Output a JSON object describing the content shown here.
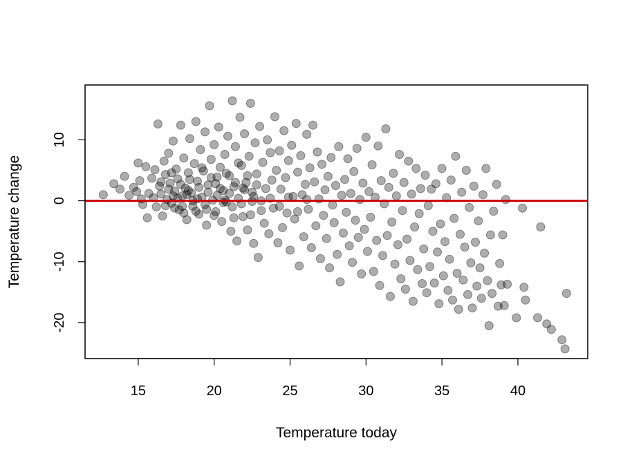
{
  "chart_data": {
    "type": "scatter",
    "title": "",
    "xlabel": "Temperature today",
    "ylabel": "Temperature change",
    "xlim": [
      11.5,
      44.6
    ],
    "ylim": [
      -25.9,
      19.0
    ],
    "xticks": [
      15,
      20,
      25,
      30,
      35,
      40
    ],
    "yticks": [
      -20,
      -10,
      0,
      10
    ],
    "grid": false,
    "legend": "none",
    "point_color": "#000000",
    "point_opacity": 0.32,
    "reference_line": {
      "y": 0,
      "color": "#cc0000"
    },
    "series": [
      {
        "points": [
          [
            12.7,
            1.0
          ],
          [
            13.4,
            2.8
          ],
          [
            13.8,
            1.9
          ],
          [
            14.1,
            4.0
          ],
          [
            14.4,
            0.9
          ],
          [
            14.7,
            2.2
          ],
          [
            14.9,
            1.5
          ],
          [
            15.0,
            6.2
          ],
          [
            15.1,
            3.3
          ],
          [
            15.2,
            0.3
          ],
          [
            15.3,
            -0.6
          ],
          [
            15.5,
            5.6
          ],
          [
            15.6,
            -2.8
          ],
          [
            15.7,
            1.2
          ],
          [
            15.9,
            3.7
          ],
          [
            16.0,
            0.5
          ],
          [
            16.1,
            5.1
          ],
          [
            16.2,
            -1.0
          ],
          [
            16.3,
            12.6
          ],
          [
            16.4,
            2.4
          ],
          [
            16.5,
            1.1
          ],
          [
            16.6,
            -2.5
          ],
          [
            16.7,
            6.5
          ],
          [
            16.8,
            4.3
          ],
          [
            16.9,
            0.2
          ],
          [
            17.0,
            7.8
          ],
          [
            17.1,
            2.9
          ],
          [
            17.2,
            -0.4
          ],
          [
            17.3,
            9.8
          ],
          [
            17.4,
            1.6
          ],
          [
            17.5,
            5.2
          ],
          [
            17.6,
            3.6
          ],
          [
            17.7,
            -1.5
          ],
          [
            17.8,
            12.4
          ],
          [
            17.9,
            0.8
          ],
          [
            18.0,
            7.0
          ],
          [
            18.1,
            2.1
          ],
          [
            18.2,
            -3.1
          ],
          [
            18.3,
            4.6
          ],
          [
            18.4,
            10.2
          ],
          [
            18.5,
            1.3
          ],
          [
            18.6,
            -0.9
          ],
          [
            18.7,
            6.1
          ],
          [
            18.8,
            13.0
          ],
          [
            18.9,
            3.2
          ],
          [
            19.0,
            -2.2
          ],
          [
            19.1,
            8.4
          ],
          [
            19.2,
            0.6
          ],
          [
            19.3,
            4.9
          ],
          [
            19.4,
            11.3
          ],
          [
            19.5,
            -4.0
          ],
          [
            19.6,
            2.6
          ],
          [
            19.7,
            15.6
          ],
          [
            19.8,
            6.8
          ],
          [
            19.9,
            0.1
          ],
          [
            20.0,
            9.2
          ],
          [
            20.1,
            -1.8
          ],
          [
            20.2,
            3.9
          ],
          [
            20.3,
            12.1
          ],
          [
            20.4,
            5.5
          ],
          [
            20.5,
            -3.4
          ],
          [
            20.6,
            1.7
          ],
          [
            20.7,
            7.6
          ],
          [
            20.8,
            -0.2
          ],
          [
            20.9,
            10.6
          ],
          [
            21.0,
            4.1
          ],
          [
            21.1,
            -5.0
          ],
          [
            21.2,
            16.4
          ],
          [
            21.3,
            2.3
          ],
          [
            21.4,
            8.9
          ],
          [
            21.5,
            -6.6
          ],
          [
            21.6,
            0.4
          ],
          [
            21.7,
            13.7
          ],
          [
            21.8,
            5.8
          ],
          [
            21.9,
            -2.6
          ],
          [
            22.0,
            11.0
          ],
          [
            22.1,
            3.0
          ],
          [
            22.2,
            -4.8
          ],
          [
            22.3,
            7.3
          ],
          [
            22.4,
            16.0
          ],
          [
            22.5,
            1.4
          ],
          [
            22.6,
            -7.0
          ],
          [
            22.7,
            9.5
          ],
          [
            22.8,
            4.4
          ],
          [
            22.9,
            -9.3
          ],
          [
            23.0,
            12.2
          ],
          [
            23.1,
            0.0
          ],
          [
            23.2,
            6.3
          ],
          [
            23.3,
            -3.7
          ],
          [
            23.4,
            2.0
          ],
          [
            23.5,
            10.0
          ],
          [
            23.6,
            -5.4
          ],
          [
            23.7,
            7.9
          ],
          [
            23.8,
            3.4
          ],
          [
            23.9,
            -1.2
          ],
          [
            24.0,
            13.8
          ],
          [
            24.1,
            5.0
          ],
          [
            24.2,
            -6.9
          ],
          [
            24.3,
            8.2
          ],
          [
            24.4,
            1.9
          ],
          [
            24.5,
            -4.4
          ],
          [
            24.6,
            11.5
          ],
          [
            24.7,
            3.8
          ],
          [
            24.8,
            -2.0
          ],
          [
            24.9,
            6.6
          ],
          [
            25.0,
            -8.1
          ],
          [
            25.1,
            9.1
          ],
          [
            25.2,
            0.7
          ],
          [
            25.3,
            -3.0
          ],
          [
            25.4,
            12.7
          ],
          [
            25.5,
            4.7
          ],
          [
            25.6,
            -10.7
          ],
          [
            25.7,
            7.4
          ],
          [
            25.8,
            1.0
          ],
          [
            25.9,
            -5.9
          ],
          [
            26.0,
            2.7
          ],
          [
            26.1,
            10.9
          ],
          [
            26.2,
            -1.4
          ],
          [
            26.3,
            5.4
          ],
          [
            26.4,
            -7.7
          ],
          [
            26.5,
            12.4
          ],
          [
            26.6,
            3.1
          ],
          [
            26.7,
            -4.1
          ],
          [
            26.8,
            8.0
          ],
          [
            26.9,
            0.3
          ],
          [
            27.0,
            -9.5
          ],
          [
            27.1,
            6.0
          ],
          [
            27.2,
            -2.4
          ],
          [
            27.3,
            1.8
          ],
          [
            27.4,
            -6.2
          ],
          [
            27.5,
            4.0
          ],
          [
            27.6,
            -11.0
          ],
          [
            27.7,
            7.1
          ],
          [
            27.8,
            -0.7
          ],
          [
            27.9,
            -3.6
          ],
          [
            28.0,
            2.5
          ],
          [
            28.1,
            -8.8
          ],
          [
            28.2,
            8.9
          ],
          [
            28.3,
            -13.3
          ],
          [
            28.4,
            0.9
          ],
          [
            28.5,
            -5.3
          ],
          [
            28.6,
            3.5
          ],
          [
            28.7,
            -1.9
          ],
          [
            28.8,
            6.9
          ],
          [
            28.9,
            -7.4
          ],
          [
            29.0,
            1.2
          ],
          [
            29.1,
            -10.1
          ],
          [
            29.2,
            4.8
          ],
          [
            29.3,
            -3.2
          ],
          [
            29.4,
            8.6
          ],
          [
            29.5,
            -6.0
          ],
          [
            29.6,
            0.2
          ],
          [
            29.7,
            -12.0
          ],
          [
            29.8,
            2.9
          ],
          [
            29.9,
            -4.7
          ],
          [
            30.0,
            10.4
          ],
          [
            30.1,
            -8.3
          ],
          [
            30.2,
            1.5
          ],
          [
            30.3,
            -2.7
          ],
          [
            30.4,
            5.9
          ],
          [
            30.5,
            -11.6
          ],
          [
            30.6,
            0.6
          ],
          [
            30.7,
            -6.5
          ],
          [
            30.8,
            9.0
          ],
          [
            30.9,
            -13.9
          ],
          [
            31.0,
            3.3
          ],
          [
            31.1,
            -9.0
          ],
          [
            31.2,
            -0.5
          ],
          [
            31.3,
            11.8
          ],
          [
            31.4,
            -5.7
          ],
          [
            31.5,
            2.2
          ],
          [
            31.6,
            -15.7
          ],
          [
            31.7,
            -3.5
          ],
          [
            31.8,
            4.5
          ],
          [
            31.9,
            -10.4
          ],
          [
            32.0,
            0.8
          ],
          [
            32.1,
            -7.2
          ],
          [
            32.2,
            7.6
          ],
          [
            32.3,
            -12.8
          ],
          [
            32.4,
            -1.6
          ],
          [
            32.5,
            3.0
          ],
          [
            32.6,
            -14.5
          ],
          [
            32.7,
            -6.3
          ],
          [
            32.8,
            6.5
          ],
          [
            32.9,
            -9.8
          ],
          [
            33.0,
            1.1
          ],
          [
            33.1,
            -16.5
          ],
          [
            33.2,
            -4.3
          ],
          [
            33.3,
            5.3
          ],
          [
            33.4,
            -11.3
          ],
          [
            33.5,
            -2.1
          ],
          [
            33.6,
            2.0
          ],
          [
            33.7,
            -13.6
          ],
          [
            33.8,
            -7.9
          ],
          [
            33.9,
            4.2
          ],
          [
            34.0,
            -15.1
          ],
          [
            34.1,
            -0.8
          ],
          [
            34.2,
            -10.8
          ],
          [
            34.3,
            1.9
          ],
          [
            34.4,
            -5.0
          ],
          [
            34.5,
            -13.5
          ],
          [
            34.6,
            2.8
          ],
          [
            34.7,
            -8.4
          ],
          [
            34.8,
            -16.9
          ],
          [
            34.9,
            -3.8
          ],
          [
            35.0,
            5.3
          ],
          [
            35.1,
            -12.3
          ],
          [
            35.2,
            -6.7
          ],
          [
            35.3,
            0.5
          ],
          [
            35.4,
            -14.7
          ],
          [
            35.5,
            -9.6
          ],
          [
            35.6,
            3.4
          ],
          [
            35.7,
            -16.3
          ],
          [
            35.8,
            -2.9
          ],
          [
            35.9,
            7.3
          ],
          [
            36.0,
            -11.9
          ],
          [
            36.1,
            -17.8
          ],
          [
            36.2,
            -5.5
          ],
          [
            36.3,
            1.4
          ],
          [
            36.4,
            -13.0
          ],
          [
            36.5,
            -7.6
          ],
          [
            36.6,
            5.0
          ],
          [
            36.7,
            -15.4
          ],
          [
            36.8,
            -1.1
          ],
          [
            36.9,
            -10.2
          ],
          [
            37.0,
            -17.6
          ],
          [
            37.1,
            2.4
          ],
          [
            37.2,
            -6.8
          ],
          [
            37.3,
            -14.0
          ],
          [
            37.4,
            -3.3
          ],
          [
            37.5,
            -11.0
          ],
          [
            37.6,
            -16.0
          ],
          [
            37.7,
            1.0
          ],
          [
            37.8,
            -8.6
          ],
          [
            37.9,
            5.3
          ],
          [
            38.0,
            -13.1
          ],
          [
            38.1,
            -20.5
          ],
          [
            38.2,
            -5.6
          ],
          [
            38.3,
            -15.2
          ],
          [
            38.4,
            -1.7
          ],
          [
            38.6,
            2.7
          ],
          [
            38.7,
            -17.3
          ],
          [
            38.8,
            -10.3
          ],
          [
            38.9,
            -13.8
          ],
          [
            39.0,
            -5.6
          ],
          [
            39.1,
            -17.2
          ],
          [
            39.2,
            0.2
          ],
          [
            39.3,
            -13.7
          ],
          [
            39.9,
            -19.2
          ],
          [
            40.3,
            -1.2
          ],
          [
            40.4,
            -14.2
          ],
          [
            40.5,
            -16.3
          ],
          [
            41.3,
            -19.2
          ],
          [
            41.5,
            -4.3
          ],
          [
            41.9,
            -20.2
          ],
          [
            42.2,
            -21.1
          ],
          [
            42.9,
            -22.8
          ],
          [
            43.1,
            -24.3
          ],
          [
            43.2,
            -15.2
          ],
          [
            16.5,
            3.1
          ],
          [
            16.8,
            -0.8
          ],
          [
            17.0,
            1.9
          ],
          [
            17.2,
            4.6
          ],
          [
            17.4,
            -1.2
          ],
          [
            17.6,
            0.4
          ],
          [
            17.8,
            2.7
          ],
          [
            18.0,
            -2.0
          ],
          [
            18.2,
            1.0
          ],
          [
            18.4,
            3.5
          ],
          [
            18.6,
            0.0
          ],
          [
            18.8,
            -1.7
          ],
          [
            19.0,
            2.2
          ],
          [
            19.2,
            5.4
          ],
          [
            19.4,
            -0.6
          ],
          [
            19.6,
            1.4
          ],
          [
            19.8,
            3.8
          ],
          [
            20.0,
            -2.4
          ],
          [
            20.2,
            0.9
          ],
          [
            20.4,
            2.0
          ],
          [
            20.6,
            -0.3
          ],
          [
            20.8,
            4.5
          ],
          [
            21.0,
            1.2
          ],
          [
            21.2,
            -1.0
          ],
          [
            21.4,
            3.0
          ],
          [
            21.6,
            6.2
          ],
          [
            21.8,
            -0.5
          ],
          [
            22.0,
            1.8
          ],
          [
            22.2,
            4.1
          ],
          [
            22.4,
            -2.3
          ],
          [
            22.6,
            0.7
          ],
          [
            22.8,
            2.6
          ],
          [
            17.3,
            0.8
          ],
          [
            17.9,
            -0.9
          ],
          [
            18.3,
            1.7
          ],
          [
            18.9,
            0.3
          ],
          [
            19.5,
            -1.4
          ],
          [
            20.1,
            2.8
          ],
          [
            20.7,
            0.1
          ],
          [
            21.3,
            -2.8
          ],
          [
            21.9,
            2.1
          ],
          [
            22.5,
            -0.1
          ],
          [
            23.1,
            -1.6
          ],
          [
            23.7,
            0.4
          ],
          [
            24.3,
            -0.9
          ],
          [
            24.9,
            0.6
          ],
          [
            25.5,
            -1.8
          ],
          [
            26.1,
            0.2
          ]
        ]
      }
    ]
  }
}
